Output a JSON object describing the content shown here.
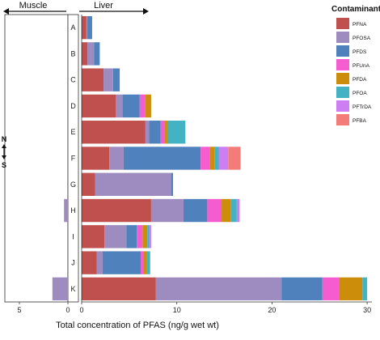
{
  "chart_data": {
    "type": "bar",
    "orientation": "horizontal",
    "stacked": true,
    "panels": [
      {
        "name": "Muscle",
        "xlim": [
          6.5,
          0
        ],
        "ticks": [
          5,
          0
        ]
      },
      {
        "name": "Liver",
        "xlim": [
          0,
          30.5
        ],
        "ticks": [
          0,
          10,
          20,
          30
        ]
      }
    ],
    "categories": [
      "A",
      "B",
      "C",
      "D",
      "E",
      "F",
      "G",
      "H",
      "I",
      "J",
      "K"
    ],
    "xlabel": "Total concentration of PFAS (ng/g wet wt)",
    "direction_label": {
      "top": "N",
      "bottom": "S"
    },
    "legend": {
      "title": "Contaminant",
      "position": "top-right"
    },
    "series": [
      {
        "name": "PFNA",
        "color": "#C0504D",
        "liver": [
          0.5,
          0.6,
          2.3,
          3.6,
          6.7,
          2.9,
          1.4,
          7.3,
          2.4,
          1.6,
          7.8
        ],
        "muscle": [
          0,
          0,
          0,
          0,
          0,
          0,
          0,
          0,
          0,
          0,
          0
        ]
      },
      {
        "name": "PFOSA",
        "color": "#9E8BBF",
        "liver": [
          0.1,
          0.7,
          1.0,
          0.7,
          0.4,
          1.5,
          8.0,
          3.4,
          2.3,
          0.6,
          13.2
        ],
        "muscle": [
          0,
          0,
          0,
          0,
          0,
          0,
          0,
          0.4,
          0,
          0,
          1.6
        ]
      },
      {
        "name": "PFDS",
        "color": "#4F81BD",
        "liver": [
          0.5,
          0.6,
          0.7,
          1.8,
          1.2,
          8.1,
          0.2,
          2.5,
          1.1,
          4.0,
          4.3
        ],
        "muscle": [
          0,
          0,
          0,
          0,
          0,
          0,
          0,
          0,
          0,
          0,
          0
        ]
      },
      {
        "name": "PFUnA",
        "color": "#F45CCF",
        "liver": [
          0,
          0,
          0,
          0.6,
          0.4,
          1.0,
          0,
          1.5,
          0.6,
          0.3,
          1.8
        ],
        "muscle": [
          0,
          0,
          0,
          0,
          0,
          0,
          0,
          0,
          0,
          0,
          0
        ]
      },
      {
        "name": "PFDA",
        "color": "#CC8E0A",
        "liver": [
          0,
          0,
          0,
          0.6,
          0.3,
          0.5,
          0,
          1.0,
          0.5,
          0.3,
          2.4
        ],
        "muscle": [
          0,
          0,
          0,
          0,
          0,
          0,
          0,
          0,
          0,
          0,
          0
        ]
      },
      {
        "name": "PFOA",
        "color": "#43B3C3",
        "liver": [
          0,
          0,
          0,
          0,
          1.9,
          0.4,
          0,
          0.6,
          0.2,
          0.4,
          0.5
        ],
        "muscle": [
          0,
          0,
          0,
          0,
          0,
          0,
          0,
          0,
          0,
          0,
          0
        ]
      },
      {
        "name": "PFTrDA",
        "color": "#CD7EF2",
        "liver": [
          0,
          0,
          0,
          0,
          0,
          1.0,
          0,
          0.3,
          0.2,
          0,
          0
        ],
        "muscle": [
          0,
          0,
          0,
          0,
          0,
          0,
          0,
          0,
          0,
          0,
          0
        ]
      },
      {
        "name": "PFBA",
        "color": "#F47C78",
        "liver": [
          0,
          0,
          0,
          0,
          0,
          1.3,
          0,
          0,
          0,
          0,
          0
        ],
        "muscle": [
          0,
          0,
          0,
          0,
          0,
          0,
          0,
          0,
          0,
          0,
          0
        ]
      }
    ]
  }
}
